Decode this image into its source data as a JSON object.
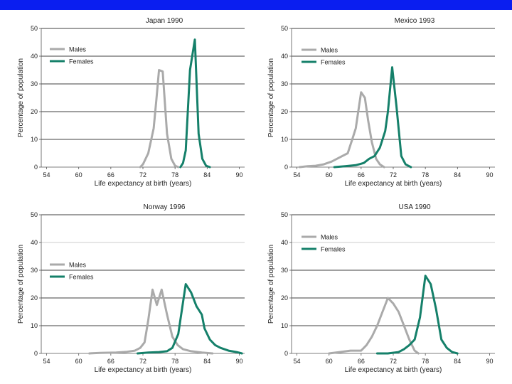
{
  "colors": {
    "top_bar": "#0a1ef0",
    "males": "#aaaaaa",
    "females": "#15806a",
    "grid": "#000000",
    "axis": "#555555"
  },
  "chart_data": [
    {
      "type": "line",
      "title": "Japan 1990",
      "xlabel": "Life expectancy at birth (years)",
      "ylabel": "Percentage of population",
      "xlim": [
        53,
        91
      ],
      "ylim": [
        0,
        50
      ],
      "xticks": [
        54,
        60,
        66,
        72,
        78,
        84,
        90
      ],
      "yticks": [
        0,
        10,
        20,
        30,
        40,
        50
      ],
      "grid": true,
      "grid_gray_y": [],
      "legend": {
        "placement": "top-left"
      },
      "series": [
        {
          "name": "Males",
          "color": "#aaaaaa",
          "x": [
            71.5,
            72,
            73,
            74,
            74.5,
            75,
            75.7,
            76.5,
            77.3,
            78,
            78.6
          ],
          "y": [
            0,
            1,
            5,
            14,
            24,
            35,
            34.5,
            12,
            3,
            0.5,
            0
          ]
        },
        {
          "name": "Females",
          "color": "#15806a",
          "x": [
            79,
            79.5,
            80,
            80.8,
            81.7,
            82.4,
            83.1,
            83.8,
            84.5
          ],
          "y": [
            0,
            1.5,
            6,
            35,
            46,
            12,
            3,
            0.5,
            0
          ]
        }
      ]
    },
    {
      "type": "line",
      "title": "Mexico 1993",
      "xlabel": "Life expectancy at birth (years)",
      "ylabel": "Percentage of population",
      "xlim": [
        53,
        91
      ],
      "ylim": [
        0,
        50
      ],
      "xticks": [
        54,
        60,
        66,
        72,
        78,
        84,
        90
      ],
      "yticks": [
        0,
        10,
        20,
        30,
        40,
        50
      ],
      "grid": true,
      "grid_gray_y": [],
      "legend": {
        "placement": "top-left"
      },
      "series": [
        {
          "name": "Males",
          "color": "#aaaaaa",
          "x": [
            54.5,
            56,
            57.5,
            59,
            60.5,
            62,
            63.5,
            64.5,
            65,
            66,
            66.7,
            67.3,
            68,
            68.8,
            69.5,
            70.3
          ],
          "y": [
            0,
            0.3,
            0.5,
            1,
            2,
            3.5,
            5,
            11,
            14,
            27,
            25,
            17,
            9,
            3,
            1,
            0
          ]
        },
        {
          "name": "Females",
          "color": "#15806a",
          "x": [
            61,
            63,
            65,
            66.5,
            67.5,
            68.5,
            69.5,
            70.5,
            71,
            71.8,
            72.6,
            73.5,
            74.3,
            75.3
          ],
          "y": [
            0,
            0.3,
            0.7,
            1.5,
            3,
            4,
            7,
            13,
            20,
            36,
            22,
            4,
            1,
            0
          ]
        }
      ]
    },
    {
      "type": "line",
      "title": "Norway 1996",
      "xlabel": "Life expectancy at birth (years)",
      "ylabel": "Percentage of population",
      "xlim": [
        53,
        91
      ],
      "ylim": [
        0,
        50
      ],
      "xticks": [
        54,
        60,
        66,
        72,
        78,
        84,
        90
      ],
      "yticks": [
        0,
        10,
        20,
        30,
        40,
        50
      ],
      "grid": true,
      "grid_gray_y": [
        40
      ],
      "legend": {
        "placement": "left"
      },
      "series": [
        {
          "name": "Males",
          "color": "#aaaaaa",
          "x": [
            62,
            64,
            67,
            69,
            70.5,
            71.5,
            72.3,
            73,
            73.8,
            74.6,
            75.5,
            76.5,
            77.5,
            78.5,
            79.5,
            81,
            83,
            85
          ],
          "y": [
            0,
            0.2,
            0.3,
            0.6,
            1,
            2,
            4,
            12,
            23,
            17.5,
            23,
            14,
            6,
            3,
            1.5,
            0.8,
            0.3,
            0
          ]
        },
        {
          "name": "Females",
          "color": "#15806a",
          "x": [
            71,
            73,
            75,
            76.5,
            77.5,
            78.6,
            80,
            81,
            82,
            83,
            83.5,
            84.5,
            85.5,
            86.5,
            88,
            89.5,
            90.5
          ],
          "y": [
            0,
            0.3,
            0.5,
            0.8,
            2,
            7,
            25,
            22,
            17,
            14,
            9,
            5,
            3,
            2,
            1,
            0.5,
            0
          ]
        }
      ]
    },
    {
      "type": "line",
      "title": "USA 1990",
      "xlabel": "Life expectancy at birth (years)",
      "ylabel": "Percentage of population",
      "xlim": [
        53,
        91
      ],
      "ylim": [
        0,
        50
      ],
      "xticks": [
        54,
        60,
        66,
        72,
        78,
        84,
        90
      ],
      "yticks": [
        0,
        10,
        20,
        30,
        40,
        50
      ],
      "grid": true,
      "grid_gray_y": [
        40
      ],
      "legend": {
        "placement": "top-left"
      },
      "series": [
        {
          "name": "Males",
          "color": "#aaaaaa",
          "x": [
            60,
            62,
            64,
            66,
            67,
            68,
            69,
            70,
            71,
            72,
            73,
            74,
            75,
            76,
            76.7
          ],
          "y": [
            0,
            0.5,
            1,
            1,
            3,
            6,
            10,
            15,
            20,
            18,
            15,
            10,
            5,
            1,
            0
          ]
        },
        {
          "name": "Females",
          "color": "#15806a",
          "x": [
            69,
            71,
            73,
            74,
            75,
            76,
            77,
            78,
            79,
            80,
            81,
            82,
            83,
            84
          ],
          "y": [
            0,
            0,
            0.5,
            1.5,
            3,
            5,
            13,
            28,
            25,
            16,
            5,
            2,
            0.5,
            0
          ]
        }
      ]
    }
  ]
}
